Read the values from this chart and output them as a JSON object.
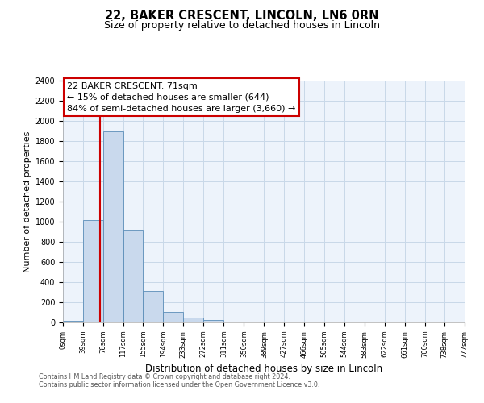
{
  "title": "22, BAKER CRESCENT, LINCOLN, LN6 0RN",
  "subtitle": "Size of property relative to detached houses in Lincoln",
  "xlabel": "Distribution of detached houses by size in Lincoln",
  "ylabel": "Number of detached properties",
  "annotation_line1": "22 BAKER CRESCENT: 71sqm",
  "annotation_line2": "← 15% of detached houses are smaller (644)",
  "annotation_line3": "84% of semi-detached houses are larger (3,660) →",
  "bin_edges": [
    0,
    39,
    78,
    117,
    155,
    194,
    233,
    272,
    311,
    350,
    389,
    427,
    466,
    505,
    544,
    583,
    622,
    661,
    700,
    738,
    777
  ],
  "bin_counts": [
    20,
    1020,
    1900,
    920,
    310,
    105,
    45,
    25,
    0,
    0,
    0,
    0,
    0,
    0,
    0,
    0,
    0,
    0,
    0,
    0
  ],
  "bar_color": "#c9d9ed",
  "bar_edge_color": "#5b8db8",
  "vline_x": 71,
  "vline_color": "#cc0000",
  "box_edge_color": "#cc0000",
  "ylim_max": 2400,
  "yticks": [
    0,
    200,
    400,
    600,
    800,
    1000,
    1200,
    1400,
    1600,
    1800,
    2000,
    2200,
    2400
  ],
  "grid_color": "#c8d8e8",
  "background_color": "#edf3fb",
  "footer_line1": "Contains HM Land Registry data © Crown copyright and database right 2024.",
  "footer_line2": "Contains public sector information licensed under the Open Government Licence v3.0.",
  "title_fontsize": 10.5,
  "subtitle_fontsize": 9
}
